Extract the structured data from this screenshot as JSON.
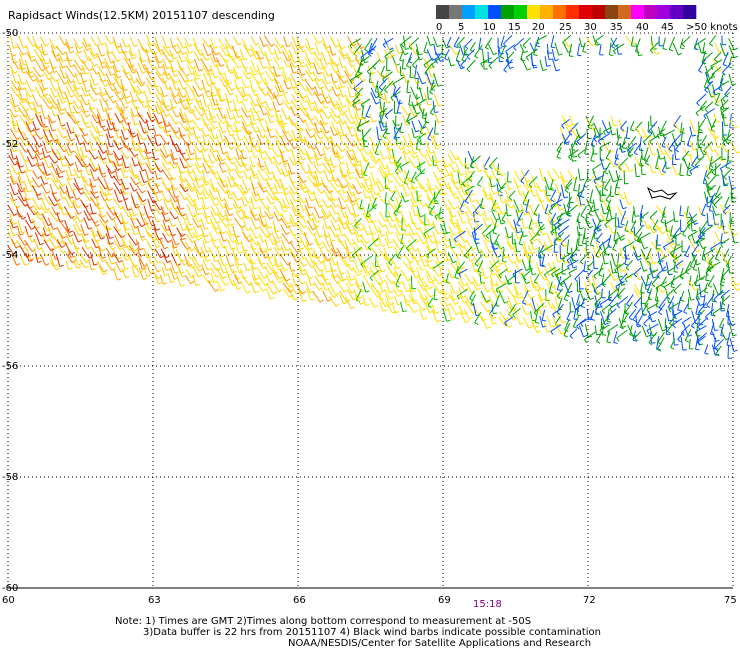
{
  "title": "Rapidsact Winds(12.5KM) 20151107 descending",
  "time_label": "15:18",
  "notes": {
    "line1": "Note: 1) Times are GMT 2)Times along bottom correspond to measurement at -50S",
    "line2": "3)Data buffer is 22 hrs from 20151107 4) Black wind barbs indicate possible contamination",
    "line3": "NOAA/NESDIS/Center for Satellite Applications and Research"
  },
  "colorbar": {
    "labels": [
      "0",
      "5",
      "10",
      "15",
      "20",
      "25",
      "30",
      "35",
      "40",
      "45",
      ">50 knots"
    ],
    "colors": [
      "#444444",
      "#777777",
      "#00a0ff",
      "#00e0e0",
      "#0050ff",
      "#00a000",
      "#00d000",
      "#ffe000",
      "#ffb000",
      "#ff7000",
      "#ff3000",
      "#e00000",
      "#c00000",
      "#8b4513",
      "#d2691e",
      "#ff00ff",
      "#c000c0",
      "#a000e0",
      "#6000c0",
      "#3000a0"
    ]
  },
  "map": {
    "lat_labels": [
      "-50",
      "-52",
      "-54",
      "-56",
      "-58",
      "-60"
    ],
    "lon_labels": [
      "60",
      "63",
      "66",
      "69",
      "72",
      "75"
    ],
    "lat_range": [
      -60,
      -50
    ],
    "lon_range": [
      60,
      75
    ]
  }
}
